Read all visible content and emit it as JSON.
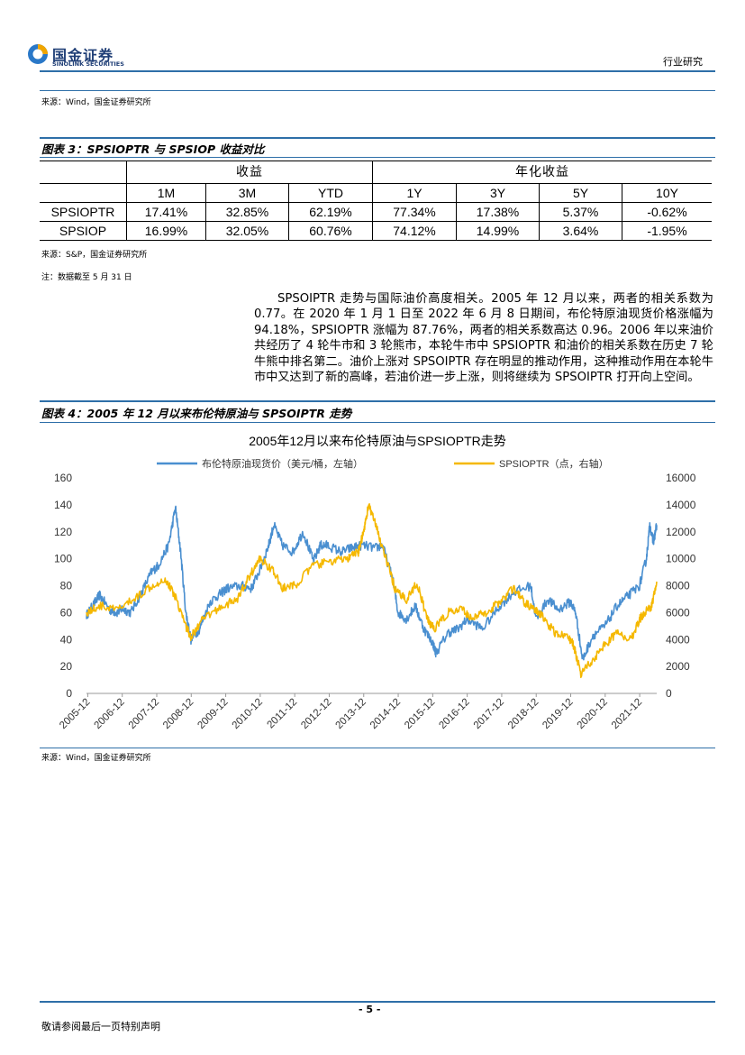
{
  "header": {
    "logo_cn": "国金证券",
    "logo_en": "SINOLINK SECURITIES",
    "section": "行业研究"
  },
  "source_top": "来源：Wind，国金证券研究所",
  "table_caption": "图表 3：SPSIOPTR 与 SPSIOP 收益对比",
  "table": {
    "group1": "收益",
    "group2": "年化收益",
    "columns": [
      "1M",
      "3M",
      "YTD",
      "1Y",
      "3Y",
      "5Y",
      "10Y"
    ],
    "rows": [
      {
        "name": "SPSIOPTR",
        "values": [
          "17.41%",
          "32.85%",
          "62.19%",
          "77.34%",
          "17.38%",
          "5.37%",
          "-0.62%"
        ]
      },
      {
        "name": "SPSIOP",
        "values": [
          "16.99%",
          "32.05%",
          "60.76%",
          "74.12%",
          "14.99%",
          "3.64%",
          "-1.95%"
        ]
      }
    ]
  },
  "table_source": "来源：S&P，国金证券研究所",
  "table_note": "注：数据截至 5 月 31 日",
  "paragraph": "SPSOIPTR 走势与国际油价高度相关。2005 年 12 月以来，两者的相关系数为 0.77。在 2020 年 1 月 1 日至 2022 年 6 月 8 日期间，布伦特原油现货价格涨幅为 94.18%，SPSIOPTR 涨幅为 87.76%，两者的相关系数高达 0.96。2006 年以来油价共经历了 4 轮牛市和 3 轮熊市，本轮牛市中 SPSIOPTR 和油价的相关系数在历史 7 轮牛熊中排名第二。油价上涨对 SPSOIPTR 存在明显的推动作用，这种推动作用在本轮牛市中又达到了新的高峰，若油价进一步上涨，则将继续为 SPSOIPTR 打开向上空间。",
  "chart_caption": "图表 4：2005 年 12 月以来布伦特原油与 SPSOIPTR 走势",
  "chart_source": "来源：Wind，国金证券研究所",
  "footer": {
    "page": "- 5 -",
    "disclaimer": "敬请参阅最后一页特别声明"
  },
  "colors": {
    "brent": "#4a8fd0",
    "spsioptr": "#f5b800",
    "rule": "#2e6fa8"
  },
  "chart_data": {
    "type": "line",
    "title": "2005年12月以来布伦特原油与SPSIOPTR走势",
    "x_ticks": [
      "2005-12",
      "2006-12",
      "2007-12",
      "2008-12",
      "2009-12",
      "2010-12",
      "2011-12",
      "2012-12",
      "2013-12",
      "2014-12",
      "2015-12",
      "2016-12",
      "2017-12",
      "2018-12",
      "2019-12",
      "2020-12",
      "2021-12"
    ],
    "xlim": [
      2005.92,
      2022.45
    ],
    "y_left": {
      "range": [
        0,
        160
      ],
      "ticks": [
        "0",
        "20",
        "40",
        "60",
        "80",
        "100",
        "120",
        "140",
        "160"
      ]
    },
    "y_right": {
      "range": [
        0,
        16000
      ],
      "ticks": [
        "0",
        "2000",
        "4000",
        "6000",
        "8000",
        "10000",
        "12000",
        "14000",
        "16000"
      ]
    },
    "series": [
      {
        "name": "布伦特原油现货价（美元/桶，左轴）",
        "axis": "left",
        "x": [
          2005.92,
          2006.1,
          2006.3,
          2006.6,
          2006.8,
          2006.95,
          2007.2,
          2007.5,
          2007.8,
          2008.0,
          2008.3,
          2008.5,
          2008.65,
          2008.8,
          2008.95,
          2009.2,
          2009.5,
          2009.8,
          2010.0,
          2010.4,
          2010.7,
          2010.95,
          2011.2,
          2011.35,
          2011.6,
          2011.9,
          2012.2,
          2012.5,
          2012.7,
          2012.9,
          2013.3,
          2013.6,
          2013.9,
          2014.3,
          2014.5,
          2014.8,
          2014.95,
          2015.2,
          2015.45,
          2015.7,
          2015.95,
          2016.05,
          2016.4,
          2016.7,
          2016.95,
          2017.4,
          2017.9,
          2018.3,
          2018.8,
          2018.95,
          2019.3,
          2019.6,
          2019.95,
          2020.1,
          2020.3,
          2020.6,
          2020.95,
          2021.3,
          2021.6,
          2021.95,
          2022.15,
          2022.25,
          2022.35,
          2022.45
        ],
        "y": [
          58,
          65,
          73,
          62,
          60,
          63,
          60,
          74,
          90,
          95,
          110,
          138,
          105,
          60,
          40,
          48,
          68,
          74,
          78,
          80,
          78,
          92,
          110,
          125,
          110,
          105,
          120,
          98,
          110,
          110,
          105,
          108,
          110,
          108,
          110,
          85,
          60,
          55,
          65,
          48,
          38,
          30,
          45,
          48,
          55,
          48,
          65,
          75,
          80,
          55,
          70,
          62,
          68,
          60,
          25,
          43,
          50,
          65,
          72,
          80,
          100,
          125,
          112,
          125
        ]
      },
      {
        "name": "SPSIOPTR（点，右轴）",
        "axis": "right",
        "x": [
          2005.92,
          2006.3,
          2006.8,
          2007.3,
          2007.8,
          2008.2,
          2008.5,
          2008.8,
          2008.95,
          2009.3,
          2009.8,
          2010.3,
          2010.6,
          2010.95,
          2011.3,
          2011.6,
          2011.95,
          2012.5,
          2013.0,
          2013.5,
          2013.8,
          2013.95,
          2014.1,
          2014.3,
          2014.6,
          2014.9,
          2015.2,
          2015.5,
          2015.8,
          2016.0,
          2016.4,
          2016.8,
          2017.1,
          2017.5,
          2017.9,
          2018.3,
          2018.6,
          2018.9,
          2019.1,
          2019.5,
          2019.9,
          2020.05,
          2020.25,
          2020.6,
          2020.9,
          2021.3,
          2021.7,
          2021.95,
          2022.1,
          2022.3,
          2022.45
        ],
        "y": [
          6000,
          6500,
          6200,
          7000,
          8000,
          8500,
          7200,
          5000,
          4200,
          5500,
          6400,
          7000,
          8500,
          10000,
          9200,
          7800,
          8000,
          9500,
          9800,
          10000,
          10500,
          12000,
          14000,
          12500,
          10000,
          7500,
          7000,
          8200,
          5500,
          4800,
          6000,
          6200,
          5600,
          6000,
          6800,
          7800,
          6800,
          6200,
          5800,
          4500,
          4200,
          3500,
          1500,
          2500,
          3500,
          4500,
          4000,
          5500,
          6000,
          6500,
          8300
        ]
      }
    ]
  }
}
